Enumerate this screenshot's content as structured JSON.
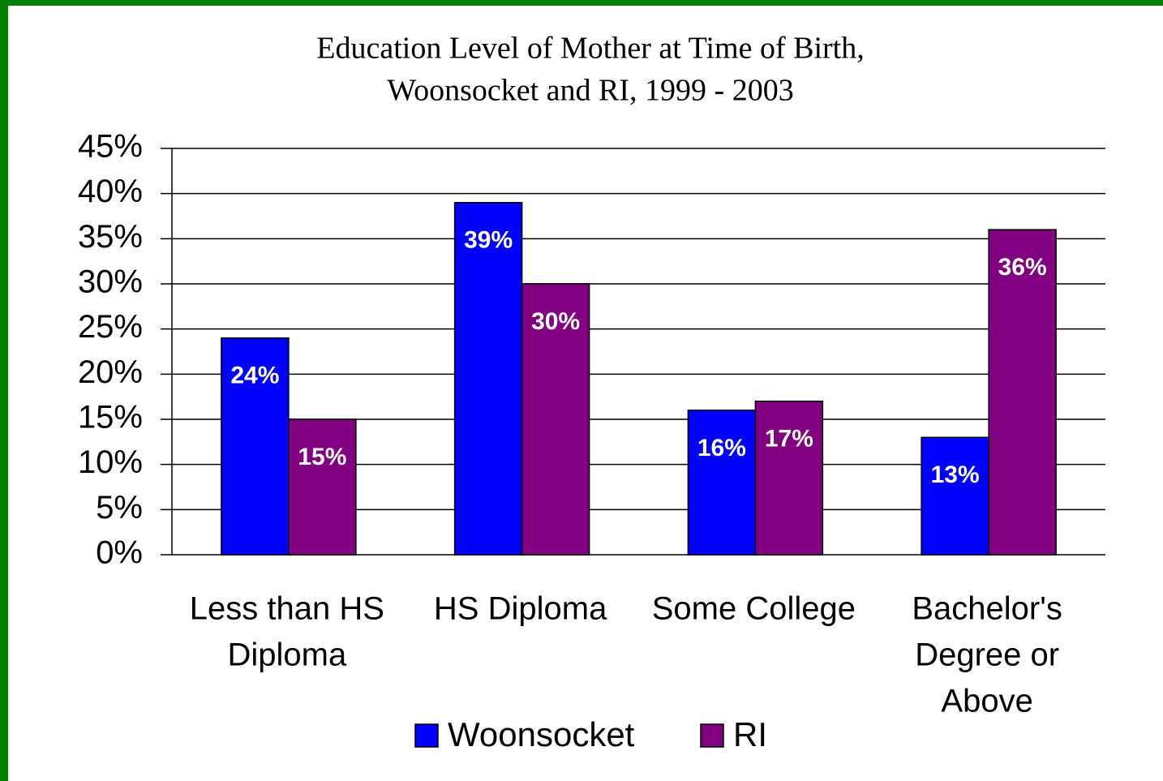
{
  "chart_data": {
    "type": "bar",
    "title": [
      "Education Level of Mother at Time of Birth,",
      "Woonsocket and RI, 1999 - 2003"
    ],
    "categories": [
      [
        "Less than HS",
        "Diploma"
      ],
      [
        "HS Diploma"
      ],
      [
        "Some College"
      ],
      [
        "Bachelor's",
        "Degree or",
        "Above"
      ]
    ],
    "series": [
      {
        "name": "Woonsocket",
        "color": "#0000ff",
        "values": [
          24,
          39,
          16,
          13
        ],
        "value_labels": [
          "24%",
          "39%",
          "16%",
          "13%"
        ]
      },
      {
        "name": "RI",
        "color": "#800080",
        "values": [
          15,
          30,
          17,
          36
        ],
        "value_labels": [
          "15%",
          "30%",
          "17%",
          "36%"
        ]
      }
    ],
    "ylim": [
      0,
      45
    ],
    "yticks": [
      {
        "value": 0,
        "label": "0%"
      },
      {
        "value": 5,
        "label": "5%"
      },
      {
        "value": 10,
        "label": "10%"
      },
      {
        "value": 15,
        "label": "15%"
      },
      {
        "value": 20,
        "label": "20%"
      },
      {
        "value": 25,
        "label": "25%"
      },
      {
        "value": 30,
        "label": "30%"
      },
      {
        "value": 35,
        "label": "35%"
      },
      {
        "value": 40,
        "label": "40%"
      },
      {
        "value": 45,
        "label": "45%"
      }
    ],
    "grid": true,
    "legend": "bottom"
  }
}
